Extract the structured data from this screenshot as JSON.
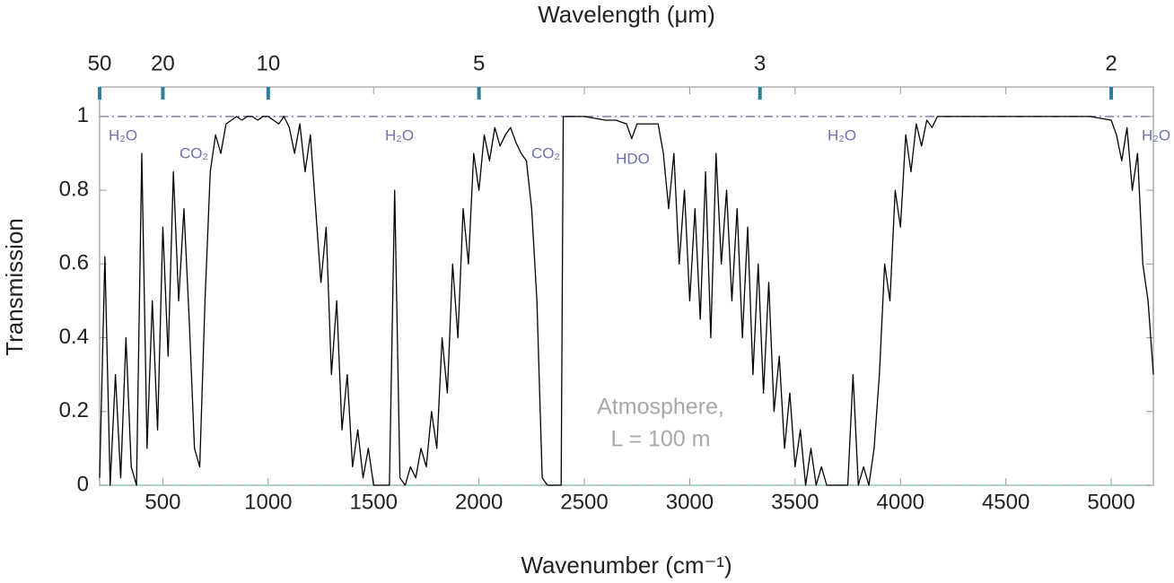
{
  "chart_data": {
    "type": "line",
    "title": "Wavelength (μm)",
    "xlabel": "Wavenumber (cm⁻¹)",
    "ylabel": "Transmission",
    "xlim": [
      200,
      5200
    ],
    "ylim": [
      0,
      1.08
    ],
    "xticks": [
      500,
      1000,
      1500,
      2000,
      2500,
      3000,
      3500,
      4000,
      4500,
      5000
    ],
    "yticks": [
      0,
      0.2,
      0.4,
      0.6,
      0.8,
      1
    ],
    "x2ticks": [
      {
        "value": 200,
        "label": "50"
      },
      {
        "value": 500,
        "label": "20"
      },
      {
        "value": 1000,
        "label": "10"
      },
      {
        "value": 2000,
        "label": "5"
      },
      {
        "value": 3333.33,
        "label": "3"
      },
      {
        "value": 5000,
        "label": "2"
      }
    ],
    "x2tick_color": "#2a7f9a",
    "reference_lines": [
      {
        "value": 1,
        "color": "#7b7bb8"
      },
      {
        "value": 0,
        "color": "#8fd3c0"
      }
    ],
    "annotations": [
      "H₂O",
      "CO₂",
      "H₂O",
      "CO₂",
      "HDO",
      "H₂O",
      "H₂O"
    ],
    "annotation_color": "#7070b0",
    "note": [
      "Atmosphere,",
      "L = 100 m"
    ],
    "series": [
      {
        "name": "Transmission",
        "color": "#000000",
        "x": [
          200,
          225,
          250,
          275,
          300,
          325,
          350,
          375,
          400,
          425,
          450,
          475,
          500,
          525,
          550,
          575,
          600,
          625,
          650,
          675,
          700,
          725,
          750,
          775,
          800,
          825,
          850,
          875,
          900,
          925,
          950,
          975,
          1000,
          1025,
          1050,
          1075,
          1100,
          1125,
          1150,
          1175,
          1200,
          1225,
          1250,
          1275,
          1300,
          1325,
          1350,
          1375,
          1400,
          1425,
          1450,
          1475,
          1500,
          1525,
          1550,
          1575,
          1600,
          1625,
          1650,
          1675,
          1700,
          1725,
          1750,
          1775,
          1800,
          1825,
          1850,
          1875,
          1900,
          1925,
          1950,
          1975,
          2000,
          2025,
          2050,
          2075,
          2100,
          2125,
          2150,
          2175,
          2200,
          2225,
          2250,
          2275,
          2300,
          2325,
          2350,
          2375,
          2390,
          2400,
          2500,
          2600,
          2650,
          2700,
          2725,
          2750,
          2800,
          2850,
          2875,
          2900,
          2925,
          2950,
          2975,
          3000,
          3025,
          3050,
          3075,
          3100,
          3125,
          3150,
          3175,
          3200,
          3225,
          3250,
          3275,
          3300,
          3325,
          3350,
          3375,
          3400,
          3425,
          3450,
          3475,
          3500,
          3525,
          3550,
          3575,
          3600,
          3625,
          3650,
          3675,
          3700,
          3725,
          3750,
          3775,
          3800,
          3825,
          3850,
          3875,
          3900,
          3925,
          3950,
          3975,
          4000,
          4025,
          4050,
          4075,
          4100,
          4125,
          4150,
          4175,
          4300,
          4500,
          4700,
          4900,
          5000,
          5025,
          5050,
          5075,
          5100,
          5125,
          5150,
          5175,
          5200
        ],
        "values": [
          0.02,
          0.62,
          0.0,
          0.3,
          0.02,
          0.4,
          0.05,
          0.0,
          0.9,
          0.1,
          0.5,
          0.15,
          0.7,
          0.35,
          0.85,
          0.5,
          0.75,
          0.45,
          0.1,
          0.05,
          0.5,
          0.85,
          0.95,
          0.9,
          0.98,
          0.99,
          1.0,
          0.99,
          1.0,
          1.0,
          0.99,
          1.0,
          1.0,
          0.99,
          0.98,
          1.0,
          0.97,
          0.9,
          0.98,
          0.85,
          0.95,
          0.75,
          0.55,
          0.7,
          0.3,
          0.5,
          0.15,
          0.3,
          0.05,
          0.15,
          0.02,
          0.1,
          0.0,
          0.0,
          0.0,
          0.0,
          0.8,
          0.02,
          0.0,
          0.05,
          0.02,
          0.1,
          0.05,
          0.2,
          0.1,
          0.4,
          0.25,
          0.6,
          0.4,
          0.75,
          0.6,
          0.9,
          0.8,
          0.95,
          0.88,
          0.97,
          0.92,
          0.95,
          0.97,
          0.93,
          0.9,
          0.88,
          0.75,
          0.5,
          0.02,
          0.0,
          0.0,
          0.0,
          0.0,
          1.0,
          1.0,
          0.99,
          0.99,
          0.98,
          0.94,
          0.98,
          0.98,
          0.98,
          0.9,
          0.75,
          0.9,
          0.6,
          0.8,
          0.5,
          0.75,
          0.45,
          0.85,
          0.4,
          0.9,
          0.6,
          0.8,
          0.5,
          0.75,
          0.4,
          0.7,
          0.3,
          0.6,
          0.25,
          0.55,
          0.2,
          0.35,
          0.1,
          0.25,
          0.05,
          0.15,
          0.0,
          0.1,
          0.0,
          0.05,
          0.0,
          0.0,
          0.0,
          0.0,
          0.0,
          0.3,
          0.0,
          0.05,
          0.0,
          0.1,
          0.3,
          0.6,
          0.5,
          0.8,
          0.7,
          0.95,
          0.85,
          0.98,
          0.92,
          0.99,
          0.97,
          1.0,
          1.0,
          1.0,
          1.0,
          1.0,
          0.99,
          0.95,
          0.88,
          0.97,
          0.8,
          0.9,
          0.6,
          0.5,
          0.3
        ]
      }
    ]
  }
}
